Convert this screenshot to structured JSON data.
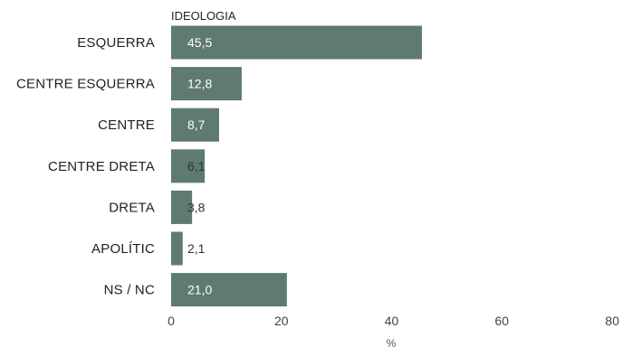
{
  "chart_data": {
    "type": "bar",
    "orientation": "horizontal",
    "title": "IDEOLOGIA",
    "categories": [
      "ESQUERRA",
      "CENTRE ESQUERRA",
      "CENTRE",
      "CENTRE DRETA",
      "DRETA",
      "APOLÍTIC",
      "NS / NC"
    ],
    "values": [
      45.5,
      12.8,
      8.7,
      6.1,
      3.8,
      2.1,
      21.0
    ],
    "value_labels": [
      "45,5",
      "12,8",
      "8,7",
      "6,1",
      "3,8",
      "2,1",
      "21,0"
    ],
    "xlabel": "%",
    "xlim": [
      0,
      80
    ],
    "xticks": [
      0,
      20,
      40,
      60,
      80
    ],
    "xtick_labels": [
      "0",
      "20",
      "40",
      "60",
      "80"
    ],
    "grid": false,
    "bar_color": "#5f7a6f"
  }
}
